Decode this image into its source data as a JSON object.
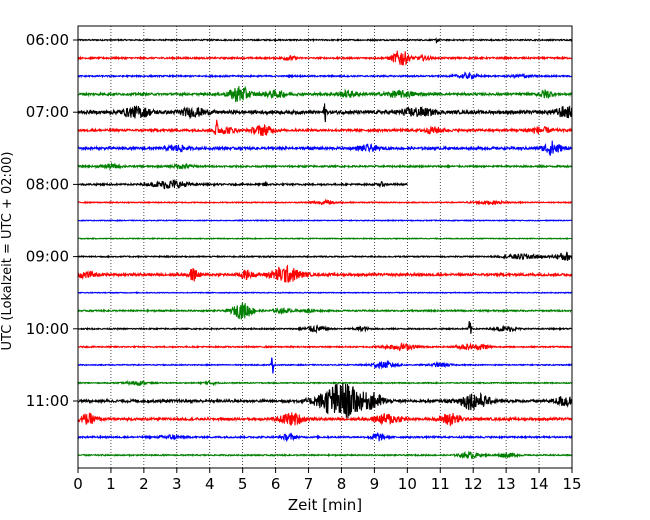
{
  "chart_data": {
    "type": "line",
    "title": "",
    "xlabel": "Zeit  [min]",
    "ylabel": "UTC (Lokalzeit = UTC + 02:00)",
    "xlim": [
      0,
      15
    ],
    "x_ticks": [
      0,
      1,
      2,
      3,
      4,
      5,
      6,
      7,
      8,
      9,
      10,
      11,
      12,
      13,
      14,
      15
    ],
    "y_ticks": [
      {
        "label": "06:00",
        "trace": 0
      },
      {
        "label": "07:00",
        "trace": 4
      },
      {
        "label": "08:00",
        "trace": 8
      },
      {
        "label": "09:00",
        "trace": 12
      },
      {
        "label": "10:00",
        "trace": 16
      },
      {
        "label": "11:00",
        "trace": 20
      }
    ],
    "grid": "vertical-dotted",
    "color_cycle": [
      "#000000",
      "#ff0000",
      "#0000ff",
      "#008000"
    ],
    "traces": [
      {
        "start": "06:00",
        "x_end": 15,
        "noise": 0.6,
        "events": [
          {
            "t": 10.9,
            "a": 4,
            "w": 0.03
          }
        ]
      },
      {
        "start": "06:15",
        "x_end": 15,
        "noise": 0.8,
        "events": [
          {
            "t": 6.4,
            "a": 2,
            "w": 0.2
          },
          {
            "t": 9.8,
            "a": 8,
            "w": 0.25
          },
          {
            "t": 10.5,
            "a": 2,
            "w": 0.2
          }
        ]
      },
      {
        "start": "06:30",
        "x_end": 15,
        "noise": 0.7,
        "events": [
          {
            "t": 11.8,
            "a": 2.5,
            "w": 0.3
          },
          {
            "t": 13.5,
            "a": 1.5,
            "w": 0.3
          }
        ]
      },
      {
        "start": "06:45",
        "x_end": 15,
        "noise": 1.1,
        "events": [
          {
            "t": 4.9,
            "a": 8,
            "w": 0.3
          },
          {
            "t": 6.0,
            "a": 3,
            "w": 0.4
          },
          {
            "t": 8.2,
            "a": 3,
            "w": 0.3
          },
          {
            "t": 9.8,
            "a": 3,
            "w": 0.5
          },
          {
            "t": 14.2,
            "a": 4,
            "w": 0.2
          }
        ]
      },
      {
        "start": "07:00",
        "x_end": 15,
        "noise": 1.6,
        "events": [
          {
            "t": 1.8,
            "a": 5,
            "w": 0.4
          },
          {
            "t": 3.5,
            "a": 4,
            "w": 0.4
          },
          {
            "t": 7.5,
            "a": 10,
            "w": 0.04
          },
          {
            "t": 10.3,
            "a": 4,
            "w": 0.5
          },
          {
            "t": 14.8,
            "a": 5,
            "w": 0.3
          }
        ]
      },
      {
        "start": "07:15",
        "x_end": 15,
        "noise": 1.1,
        "events": [
          {
            "t": 4.2,
            "a": 10,
            "w": 0.05
          },
          {
            "t": 4.5,
            "a": 3,
            "w": 0.3
          },
          {
            "t": 5.6,
            "a": 5,
            "w": 0.3
          },
          {
            "t": 10.8,
            "a": 3,
            "w": 0.3
          },
          {
            "t": 14.0,
            "a": 3,
            "w": 0.4
          }
        ]
      },
      {
        "start": "07:30",
        "x_end": 15,
        "noise": 1.2,
        "events": [
          {
            "t": 3.0,
            "a": 3,
            "w": 0.3
          },
          {
            "t": 8.8,
            "a": 3,
            "w": 0.3
          },
          {
            "t": 14.4,
            "a": 7,
            "w": 0.25
          }
        ]
      },
      {
        "start": "07:45",
        "x_end": 15,
        "noise": 0.8,
        "events": [
          {
            "t": 1.0,
            "a": 2,
            "w": 0.3
          },
          {
            "t": 3.2,
            "a": 2,
            "w": 0.3
          }
        ]
      },
      {
        "start": "08:00",
        "x_end": 10,
        "noise": 0.8,
        "events": [
          {
            "t": 2.8,
            "a": 4,
            "w": 0.5
          },
          {
            "t": 5.7,
            "a": 3,
            "w": 0.05
          },
          {
            "t": 9.2,
            "a": 2,
            "w": 0.1
          }
        ]
      },
      {
        "start": "08:15",
        "x_end": 15,
        "noise": 0.5,
        "events": [
          {
            "t": 7.5,
            "a": 1.5,
            "w": 0.4
          },
          {
            "t": 12.5,
            "a": 1.5,
            "w": 0.5
          }
        ]
      },
      {
        "start": "08:30",
        "x_end": 15,
        "noise": 0.4,
        "events": []
      },
      {
        "start": "08:45",
        "x_end": 15,
        "noise": 0.4,
        "events": []
      },
      {
        "start": "09:00",
        "x_end": 15,
        "noise": 0.6,
        "events": [
          {
            "t": 13.5,
            "a": 2.5,
            "w": 0.5
          },
          {
            "t": 14.8,
            "a": 4,
            "w": 0.3
          }
        ]
      },
      {
        "start": "09:15",
        "x_end": 15,
        "noise": 1.2,
        "events": [
          {
            "t": 0.2,
            "a": 3,
            "w": 0.3
          },
          {
            "t": 3.5,
            "a": 6,
            "w": 0.15
          },
          {
            "t": 5.1,
            "a": 4,
            "w": 0.2
          },
          {
            "t": 6.3,
            "a": 8,
            "w": 0.45
          }
        ]
      },
      {
        "start": "09:30",
        "x_end": 15,
        "noise": 0.4,
        "events": []
      },
      {
        "start": "09:45",
        "x_end": 15,
        "noise": 0.7,
        "events": [
          {
            "t": 5.0,
            "a": 8,
            "w": 0.3
          },
          {
            "t": 6.2,
            "a": 2,
            "w": 0.3
          },
          {
            "t": 7.0,
            "a": 1.5,
            "w": 0.2
          }
        ]
      },
      {
        "start": "10:00",
        "x_end": 15,
        "noise": 0.6,
        "events": [
          {
            "t": 7.2,
            "a": 3,
            "w": 0.3
          },
          {
            "t": 8.6,
            "a": 2,
            "w": 0.2
          },
          {
            "t": 11.9,
            "a": 10,
            "w": 0.04
          },
          {
            "t": 13.0,
            "a": 2.5,
            "w": 0.3
          }
        ]
      },
      {
        "start": "10:15",
        "x_end": 15,
        "noise": 0.6,
        "events": [
          {
            "t": 9.8,
            "a": 3,
            "w": 0.5
          },
          {
            "t": 11.8,
            "a": 2.5,
            "w": 0.3
          },
          {
            "t": 12.3,
            "a": 2.5,
            "w": 0.2
          }
        ]
      },
      {
        "start": "10:30",
        "x_end": 15,
        "noise": 0.5,
        "events": [
          {
            "t": 5.9,
            "a": 10,
            "w": 0.04
          },
          {
            "t": 9.3,
            "a": 3,
            "w": 0.4
          },
          {
            "t": 11.0,
            "a": 2,
            "w": 0.3
          }
        ]
      },
      {
        "start": "10:45",
        "x_end": 15,
        "noise": 0.5,
        "events": [
          {
            "t": 1.8,
            "a": 2,
            "w": 0.3
          },
          {
            "t": 4.0,
            "a": 1.5,
            "w": 0.2
          }
        ]
      },
      {
        "start": "11:00",
        "x_end": 15,
        "noise": 1.3,
        "events": [
          {
            "t": 8.0,
            "a": 18,
            "w": 0.65
          },
          {
            "t": 9.0,
            "a": 6,
            "w": 0.3
          },
          {
            "t": 12.0,
            "a": 8,
            "w": 0.45
          },
          {
            "t": 14.8,
            "a": 5,
            "w": 0.3
          }
        ]
      },
      {
        "start": "11:15",
        "x_end": 15,
        "noise": 1.2,
        "events": [
          {
            "t": 0.3,
            "a": 5,
            "w": 0.25
          },
          {
            "t": 6.5,
            "a": 6,
            "w": 0.35
          },
          {
            "t": 9.4,
            "a": 5,
            "w": 0.4
          },
          {
            "t": 11.3,
            "a": 6,
            "w": 0.3
          }
        ]
      },
      {
        "start": "11:30",
        "x_end": 15,
        "noise": 0.8,
        "events": [
          {
            "t": 2.8,
            "a": 2,
            "w": 0.3
          },
          {
            "t": 6.4,
            "a": 3,
            "w": 0.2
          },
          {
            "t": 9.1,
            "a": 4,
            "w": 0.2
          }
        ]
      },
      {
        "start": "11:45",
        "x_end": 15,
        "noise": 0.6,
        "events": [
          {
            "t": 11.9,
            "a": 3,
            "w": 0.3
          },
          {
            "t": 13.0,
            "a": 2,
            "w": 0.3
          }
        ]
      }
    ]
  }
}
